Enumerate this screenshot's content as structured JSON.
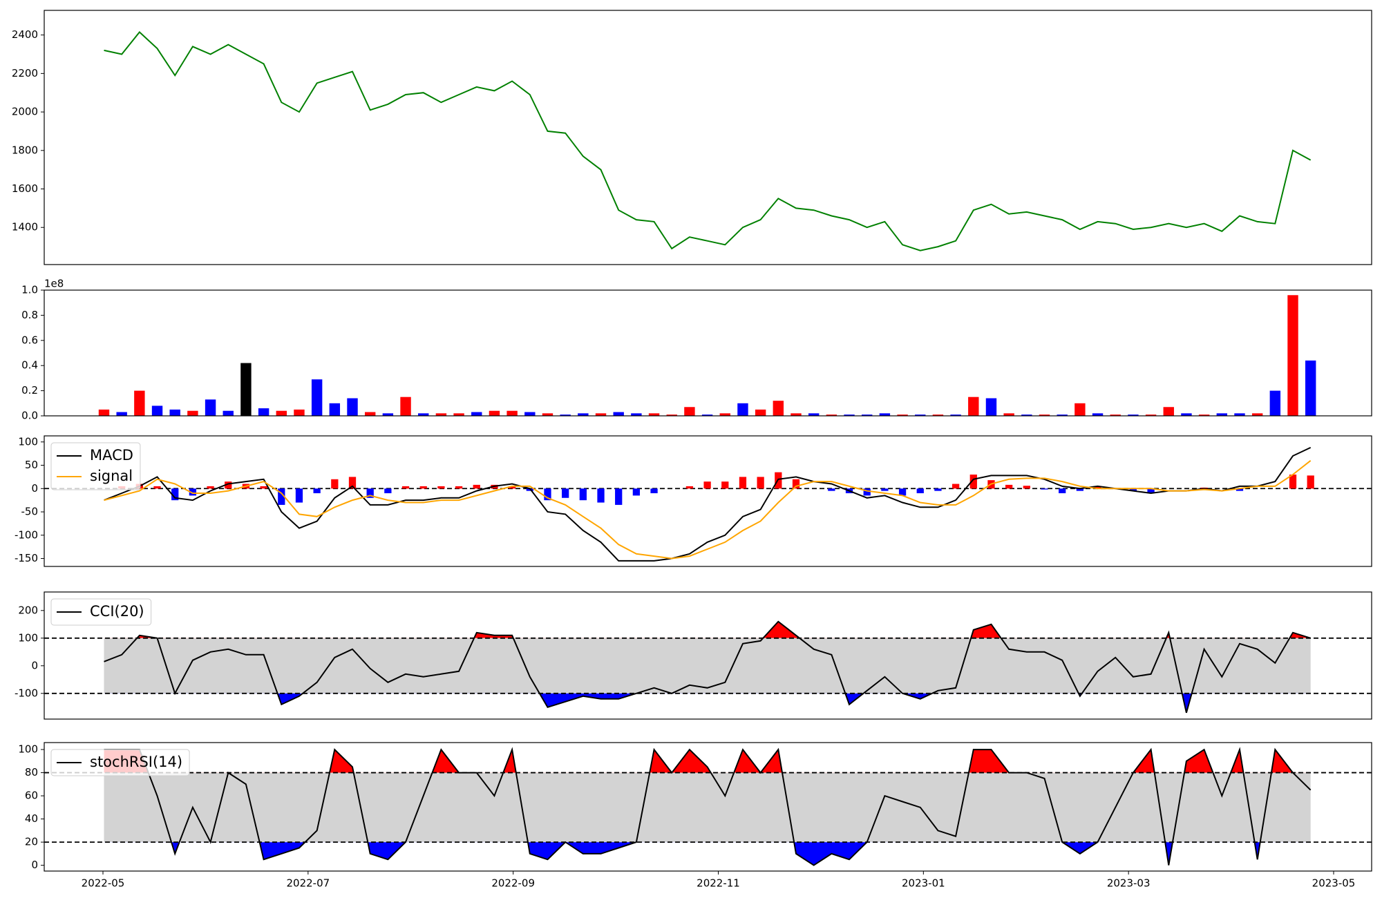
{
  "chart_data": [
    {
      "type": "line",
      "series": [
        {
          "color": "green",
          "values": [
            2320,
            2300,
            2415,
            2330,
            2190,
            2340,
            2300,
            2350,
            2300,
            2250,
            2050,
            2000,
            2150,
            2180,
            2210,
            2010,
            2040,
            2090,
            2100,
            2050,
            2090,
            2130,
            2110,
            2160,
            2090,
            1900,
            1890,
            1770,
            1700,
            1490,
            1440,
            1430,
            1290,
            1350,
            1330,
            1310,
            1400,
            1440,
            1550,
            1500,
            1490,
            1460,
            1440,
            1400,
            1430,
            1310,
            1280,
            1300,
            1330,
            1490,
            1520,
            1470,
            1480,
            1460,
            1440,
            1390,
            1430,
            1420,
            1390,
            1400,
            1420,
            1400,
            1420,
            1380,
            1460,
            1430,
            1420,
            1800,
            1750
          ]
        }
      ],
      "ylim": [
        1207,
        2528
      ],
      "yticks": [
        1400,
        1600,
        1800,
        2000,
        2200,
        2400
      ]
    },
    {
      "type": "bar",
      "values": [
        0.05,
        0.03,
        0.2,
        0.08,
        0.05,
        0.04,
        0.13,
        0.04,
        0.42,
        0.06,
        0.04,
        0.05,
        0.29,
        0.1,
        0.14,
        0.03,
        0.02,
        0.15,
        0.02,
        0.02,
        0.02,
        0.03,
        0.04,
        0.04,
        0.03,
        0.02,
        0.01,
        0.02,
        0.02,
        0.03,
        0.02,
        0.02,
        0.01,
        0.07,
        0.01,
        0.02,
        0.1,
        0.05,
        0.12,
        0.02,
        0.02,
        0.01,
        0.01,
        0.01,
        0.02,
        0.01,
        0.01,
        0.01,
        0.01,
        0.15,
        0.14,
        0.02,
        0.01,
        0.01,
        0.01,
        0.1,
        0.02,
        0.01,
        0.01,
        0.01,
        0.07,
        0.02,
        0.01,
        0.02,
        0.02,
        0.02,
        0.2,
        0.96,
        0.44
      ],
      "colors": [
        "red",
        "blue",
        "red",
        "blue",
        "blue",
        "red",
        "blue",
        "blue",
        "black",
        "blue",
        "red",
        "red",
        "blue",
        "blue",
        "blue",
        "red",
        "blue",
        "red",
        "blue",
        "red",
        "red",
        "blue",
        "red",
        "red",
        "blue",
        "red",
        "blue",
        "blue",
        "red",
        "blue",
        "blue",
        "red",
        "red",
        "red",
        "blue",
        "red",
        "blue",
        "red",
        "red",
        "red",
        "blue",
        "red",
        "blue",
        "blue",
        "blue",
        "red",
        "blue",
        "red",
        "blue",
        "red",
        "blue",
        "red",
        "blue",
        "red",
        "blue",
        "red",
        "blue",
        "red",
        "blue",
        "red",
        "red",
        "blue",
        "red",
        "blue",
        "blue",
        "red",
        "blue",
        "red",
        "blue"
      ],
      "ylim": [
        0,
        1.0
      ],
      "yticks": [
        {
          "value": 0,
          "label": "0.0"
        },
        0.2,
        0.4,
        0.6,
        0.8,
        {
          "value": 1.0,
          "label": "1.0"
        }
      ],
      "offset_label": "1e8"
    },
    {
      "type": "macd",
      "series": [
        {
          "name": "MACD",
          "color": "black",
          "values": [
            -25,
            -10,
            5,
            25,
            -20,
            -25,
            -5,
            10,
            15,
            20,
            -50,
            -85,
            -70,
            -20,
            5,
            -35,
            -35,
            -25,
            -25,
            -20,
            -20,
            -5,
            5,
            10,
            0,
            -50,
            -55,
            -90,
            -115,
            -155,
            -155,
            -155,
            -150,
            -140,
            -115,
            -100,
            -60,
            -45,
            20,
            25,
            15,
            10,
            -5,
            -20,
            -15,
            -30,
            -40,
            -40,
            -25,
            20,
            28,
            28,
            28,
            20,
            5,
            0,
            5,
            0,
            -5,
            -10,
            -5,
            -5,
            0,
            -5,
            5,
            5,
            15,
            70,
            88
          ]
        },
        {
          "name": "signal",
          "color": "orange",
          "values": [
            -25,
            -15,
            -5,
            20,
            10,
            -10,
            -10,
            -5,
            5,
            15,
            -10,
            -55,
            -60,
            -40,
            -25,
            -15,
            -25,
            -30,
            -30,
            -25,
            -25,
            -15,
            -5,
            5,
            5,
            -20,
            -35,
            -60,
            -85,
            -120,
            -140,
            -145,
            -150,
            -145,
            -130,
            -115,
            -90,
            -70,
            -30,
            5,
            15,
            15,
            5,
            -5,
            -10,
            -15,
            -30,
            -35,
            -35,
            -15,
            10,
            20,
            22,
            22,
            15,
            5,
            0,
            0,
            0,
            0,
            -5,
            -5,
            -2,
            -5,
            0,
            5,
            5,
            30,
            60
          ]
        },
        {
          "pos_color": "red",
          "neg_color": "blue",
          "values": [
            0,
            5,
            10,
            5,
            -25,
            -15,
            5,
            15,
            10,
            5,
            -35,
            -30,
            -10,
            20,
            25,
            -20,
            -10,
            5,
            5,
            5,
            5,
            8,
            8,
            5,
            -5,
            -25,
            -20,
            -25,
            -30,
            -35,
            -15,
            -10,
            0,
            5,
            15,
            15,
            25,
            25,
            35,
            20,
            0,
            -5,
            -10,
            -15,
            -5,
            -15,
            -10,
            -5,
            10,
            30,
            18,
            8,
            6,
            -2,
            -10,
            -5,
            5,
            0,
            -5,
            -10,
            0,
            0,
            2,
            0,
            -5,
            0,
            0,
            30,
            28
          ]
        }
      ],
      "ylim": [
        -167,
        113
      ],
      "yticks": [
        -150,
        -100,
        -50,
        0,
        50,
        100
      ],
      "legend": "upper left"
    },
    {
      "type": "oscillator",
      "series": [
        {
          "name": "CCI(20)",
          "color": "black",
          "values": [
            15,
            40,
            110,
            100,
            -100,
            20,
            50,
            60,
            40,
            40,
            -140,
            -110,
            -60,
            30,
            60,
            -10,
            -60,
            -30,
            -40,
            -30,
            -20,
            120,
            110,
            110,
            -40,
            -150,
            -130,
            -110,
            -120,
            -120,
            -100,
            -80,
            -100,
            -70,
            -80,
            -60,
            80,
            90,
            160,
            110,
            60,
            40,
            -140,
            -90,
            -40,
            -100,
            -120,
            -90,
            -80,
            130,
            150,
            60,
            50,
            50,
            20,
            -110,
            -20,
            30,
            -40,
            -30,
            120,
            -170,
            60,
            -40,
            80,
            60,
            10,
            120,
            100
          ]
        }
      ],
      "bands": [
        -100,
        100
      ],
      "band_color": "lightgray",
      "above_color": "red",
      "below_color": "blue",
      "ylim": [
        -193,
        267
      ],
      "yticks": [
        -100,
        0,
        100,
        200
      ],
      "legend": "upper left"
    },
    {
      "type": "oscillator",
      "series": [
        {
          "name": "stochRSI(14)",
          "color": "black",
          "values": [
            100,
            100,
            100,
            60,
            10,
            50,
            20,
            80,
            70,
            5,
            10,
            15,
            30,
            100,
            85,
            10,
            5,
            20,
            60,
            100,
            80,
            80,
            60,
            100,
            10,
            5,
            20,
            10,
            10,
            15,
            20,
            100,
            80,
            100,
            85,
            60,
            100,
            80,
            100,
            10,
            0,
            10,
            5,
            20,
            60,
            55,
            50,
            30,
            25,
            100,
            100,
            80,
            80,
            75,
            20,
            10,
            20,
            50,
            80,
            100,
            0,
            90,
            100,
            60,
            100,
            5,
            100,
            80,
            65
          ]
        }
      ],
      "bands": [
        20,
        80
      ],
      "band_color": "lightgray",
      "above_color": "red",
      "below_color": "blue",
      "ylim": [
        -5,
        106
      ],
      "yticks": [
        0,
        20,
        40,
        60,
        80,
        100
      ],
      "legend": "upper left",
      "xticks": [
        "2022-05",
        "2022-07",
        "2022-09",
        "2022-11",
        "2023-01",
        "2023-03",
        "2023-05"
      ]
    }
  ]
}
